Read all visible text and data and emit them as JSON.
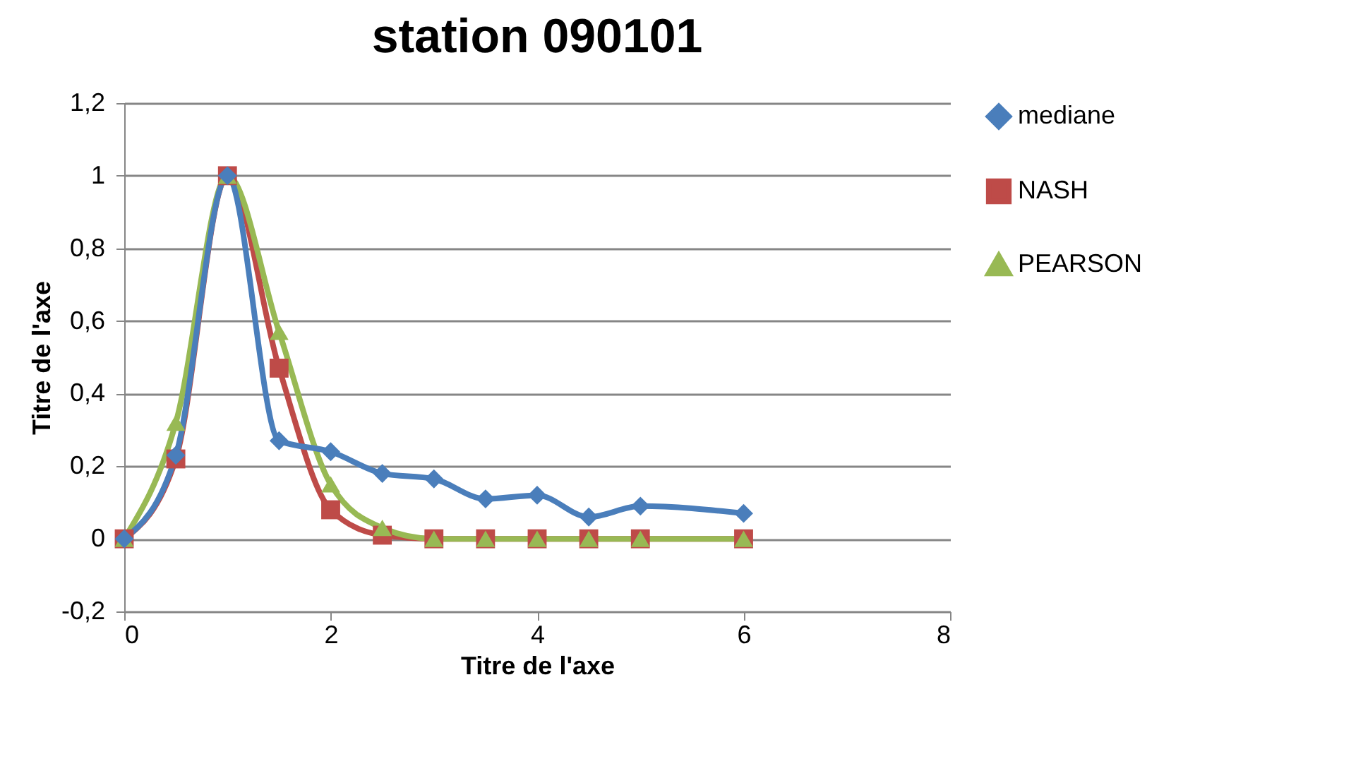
{
  "chart_data": {
    "type": "line",
    "title": "station 090101",
    "xlabel": "Titre de l'axe",
    "ylabel": "Titre de l'axe",
    "x": [
      0,
      0.5,
      1,
      1.5,
      2,
      2.5,
      3,
      3.5,
      4,
      4.5,
      5,
      6
    ],
    "xlim": [
      0,
      8
    ],
    "xticks": [
      0,
      2,
      4,
      6,
      8
    ],
    "ylim": [
      -0.2,
      1.2
    ],
    "yticks": [
      {
        "value": -0.2,
        "label": "-0,2"
      },
      {
        "value": 0,
        "label": "0"
      },
      {
        "value": 0.2,
        "label": "0,2"
      },
      {
        "value": 0.4,
        "label": "0,4"
      },
      {
        "value": 0.6,
        "label": "0,6"
      },
      {
        "value": 0.8,
        "label": "0,8"
      },
      {
        "value": 1,
        "label": "1"
      },
      {
        "value": 1.2,
        "label": "1,2"
      }
    ],
    "grid": "y",
    "legend": "right",
    "series": [
      {
        "name": "mediane",
        "color": "#4a7ebb",
        "marker": "diamond",
        "values": [
          0,
          0.23,
          1,
          0.27,
          0.24,
          0.18,
          0.165,
          0.11,
          0.12,
          0.06,
          0.09,
          0.07
        ]
      },
      {
        "name": "NASH",
        "color": "#be4b48",
        "marker": "square",
        "values": [
          0,
          0.22,
          1,
          0.47,
          0.08,
          0.01,
          0,
          0,
          0,
          0,
          0,
          0
        ]
      },
      {
        "name": "PEARSON",
        "color": "#98b954",
        "marker": "triangle",
        "values": [
          0,
          0.32,
          1,
          0.57,
          0.15,
          0.03,
          0,
          0,
          0,
          0,
          0,
          0
        ]
      }
    ]
  }
}
